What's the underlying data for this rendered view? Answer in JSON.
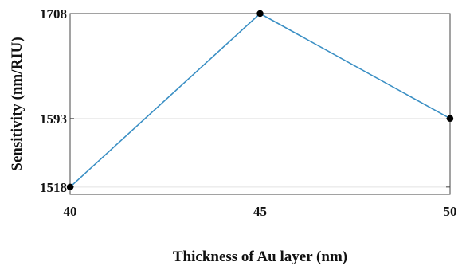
{
  "chart_data": {
    "type": "line",
    "title": "",
    "xlabel": "Thickness of Au layer (nm)",
    "ylabel": "Sensitivity (nm/RIU)",
    "x": [
      40,
      45,
      50
    ],
    "series": [
      {
        "values": [
          1518,
          1708,
          1593
        ]
      }
    ],
    "xticks": [
      40,
      45,
      50
    ],
    "yticks": [
      1518,
      1593,
      1708
    ],
    "xtick_labels": [
      "40",
      "45",
      "50"
    ],
    "ytick_labels": [
      "1518",
      "1593",
      "1708"
    ],
    "xlim": [
      40,
      50
    ],
    "ylim": [
      1510,
      1708
    ],
    "grid": true,
    "line_color": "#3a8fc4",
    "marker_color": "#000000",
    "grid_color": "#e2e2e2",
    "axis_color": "#444444"
  }
}
